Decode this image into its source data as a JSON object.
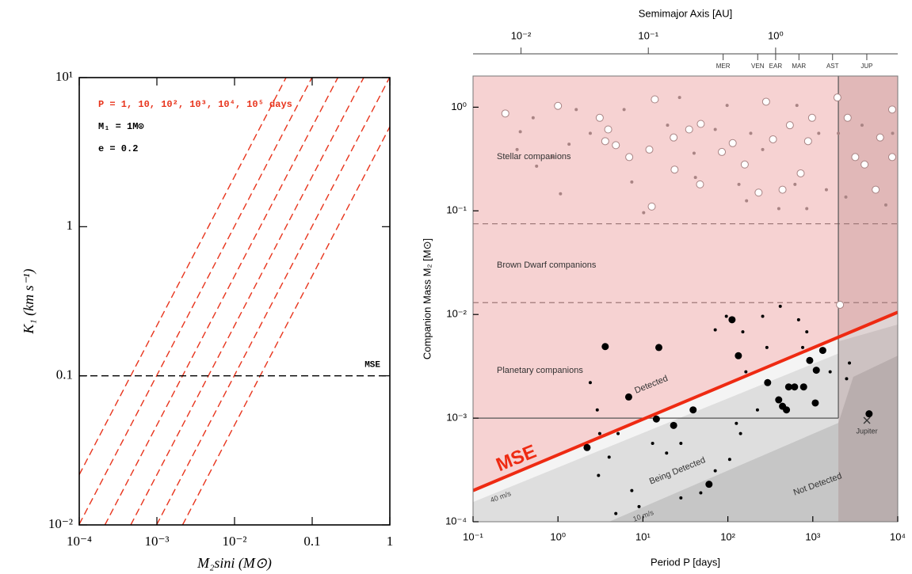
{
  "chart_data": [
    {
      "type": "line",
      "xlabel": "M₂sini (M⊙)",
      "ylabel": "K₁ (km s⁻¹)",
      "xscale": "log",
      "yscale": "log",
      "xlim": [
        0.0001,
        1
      ],
      "ylim": [
        0.01,
        10
      ],
      "xticks": [
        {
          "value": 0.0001,
          "label": "10⁻⁴"
        },
        {
          "value": 0.001,
          "label": "10⁻³"
        },
        {
          "value": 0.01,
          "label": "10⁻²"
        },
        0.1,
        1
      ],
      "yticks": [
        {
          "value": 0.01,
          "label": "10⁻²"
        },
        0.1,
        1,
        {
          "value": 10,
          "label": "10¹"
        }
      ],
      "annotations": [
        "P = 1, 10, 10², 10³, 10⁴, 10⁵ days",
        "M₁ = 1M⊙",
        "e = 0.2"
      ],
      "annotation_colors": [
        "#e8341c",
        "#000000",
        "#000000"
      ],
      "series": [
        {
          "color": "#e8341c",
          "dash": "dashed",
          "x": [
            0.0001,
            0.0461
          ],
          "values": [
            0.0217,
            10
          ]
        },
        {
          "color": "#e8341c",
          "dash": "dashed",
          "x": [
            0.0001,
            0.0992
          ],
          "values": [
            0.0101,
            10
          ]
        },
        {
          "color": "#e8341c",
          "dash": "dashed",
          "x": [
            0.000214,
            0.214
          ],
          "values": [
            0.01,
            10
          ]
        },
        {
          "color": "#e8341c",
          "dash": "dashed",
          "x": [
            0.00046,
            0.46
          ],
          "values": [
            0.01,
            10
          ]
        },
        {
          "color": "#e8341c",
          "dash": "dashed",
          "x": [
            0.00099,
            0.99
          ],
          "values": [
            0.01,
            10
          ]
        },
        {
          "color": "#e8341c",
          "dash": "dashed",
          "x": [
            0.00214,
            1
          ],
          "values": [
            0.01,
            4.68
          ]
        }
      ],
      "hlines": [
        {
          "value": 0.1,
          "label": "MSE",
          "color": "#000000"
        }
      ]
    },
    {
      "type": "scatter",
      "xlabel": "Period P [days]",
      "ylabel": "Companion Mass M₂ [M⊙]",
      "x2label": "Semimajor Axis [AU]",
      "xscale": "log",
      "yscale": "log",
      "xlim": [
        0.1,
        10000
      ],
      "ylim": [
        0.0001,
        2
      ],
      "x2lim": [
        0.0042,
        9.1
      ],
      "xticks": [
        {
          "value": 0.1,
          "label": "10⁻¹"
        },
        {
          "value": 1,
          "label": "10⁰"
        },
        {
          "value": 10,
          "label": "10¹"
        },
        {
          "value": 100,
          "label": "10²"
        },
        {
          "value": 1000,
          "label": "10³"
        },
        {
          "value": 10000,
          "label": "10⁴"
        }
      ],
      "yticks": [
        {
          "value": 0.0001,
          "label": "10⁻⁴"
        },
        {
          "value": 0.001,
          "label": "10⁻³"
        },
        {
          "value": 0.01,
          "label": "10⁻²"
        },
        {
          "value": 0.1,
          "label": "10⁻¹"
        },
        {
          "value": 1,
          "label": "10⁰"
        }
      ],
      "x2ticks": [
        {
          "value": 0.01,
          "label": "10⁻²"
        },
        {
          "value": 0.1,
          "label": "10⁻¹"
        },
        {
          "value": 1,
          "label": "10⁰"
        }
      ],
      "x2_planets": [
        {
          "value": 0.387,
          "label": "MER"
        },
        {
          "value": 0.723,
          "label": "VEN"
        },
        {
          "value": 1,
          "label": "EAR"
        },
        {
          "value": 1.524,
          "label": "MAR"
        },
        {
          "value": 2.8,
          "label": "AST"
        },
        {
          "value": 5.2,
          "label": "JUP"
        }
      ],
      "region_labels": [
        "Stellar companions",
        "Brown Dwarf companions",
        "Planetary companions"
      ],
      "mass_limits": [
        0.075,
        0.013
      ],
      "box": {
        "x": 2000,
        "value": 0.001
      },
      "mse_line": {
        "label": "MSE",
        "sublabel": "Detected",
        "color": "#ee2a12",
        "x": [
          0.1,
          10000
        ],
        "values": [
          0.0002,
          0.0105
        ]
      },
      "limits": [
        {
          "label": "40 m/s",
          "color": "#dedede",
          "x": [
            0.1,
            2000,
            2000,
            10000
          ],
          "values": [
            0.000155,
            0.0042,
            0.0055,
            0.008
          ]
        },
        {
          "label": "10 m/s",
          "color": "#c6c6c6",
          "x": [
            4,
            2000,
            3000,
            10000
          ],
          "values": [
            0.0001,
            0.0009,
            0.0025,
            0.004
          ]
        }
      ],
      "zone_labels": [
        "Being Detected",
        "Not Detected"
      ],
      "jupiter": {
        "label": "Jupiter",
        "x": 4333,
        "value": 0.00095
      },
      "series": [
        {
          "marker": "open",
          "size": "large",
          "color": "#a98484",
          "x": [
            0.24,
            1.0,
            3.9,
            4.8,
            13.8,
            11.9,
            6.9,
            23,
            35,
            48,
            85,
            114,
            158,
            282,
            537,
            980,
            1950,
            2570,
            3160,
            4070,
            5500,
            6200,
            8600,
            8600,
            880,
            2090,
            47,
            230,
            440,
            720,
            12.7,
            3.6,
            23.6,
            3.1,
            340
          ],
          "values": [
            0.87,
            1.03,
            0.61,
            0.43,
            1.19,
            0.39,
            0.33,
            0.51,
            0.61,
            0.69,
            0.37,
            0.45,
            0.28,
            1.13,
            0.67,
            0.79,
            1.24,
            0.79,
            0.33,
            0.28,
            0.16,
            0.51,
            0.95,
            0.33,
            0.47,
            0.0124,
            0.18,
            0.15,
            0.16,
            0.23,
            0.11,
            0.47,
            0.25,
            0.79,
            0.49
          ]
        },
        {
          "marker": "dot",
          "size": "small",
          "color": "#a98484",
          "x": [
            0.36,
            0.33,
            0.51,
            0.86,
            1.07,
            1.64,
            2.4,
            6.0,
            7.4,
            10.2,
            19.5,
            27,
            41.5,
            71,
            98,
            166,
            186,
            257,
            398,
            617,
            850,
            1175,
            1445,
            2450,
            3800,
            7240,
            650,
            135,
            40,
            1.35,
            2000,
            8700,
            0.56
          ],
          "values": [
            0.58,
            0.39,
            0.79,
            0.33,
            0.146,
            0.95,
            0.56,
            0.95,
            0.19,
            0.096,
            0.67,
            1.24,
            0.21,
            0.61,
            1.04,
            0.125,
            0.56,
            0.39,
            0.105,
            0.18,
            0.105,
            0.56,
            0.16,
            0.136,
            0.67,
            0.114,
            1.04,
            0.18,
            0.36,
            0.44,
            0.56,
            0.56,
            0.27
          ]
        },
        {
          "marker": "filled",
          "size": "large",
          "color": "#000000",
          "x": [
            3.6,
            15.4,
            112,
            133,
            6.8,
            2.2,
            14.4,
            39,
            23,
            60,
            294,
            397,
            440,
            520,
            610,
            780,
            490,
            920,
            1100,
            1310,
            1070,
            4600
          ],
          "values": [
            0.0049,
            0.0048,
            0.0089,
            0.004,
            0.0016,
            0.00052,
            0.00098,
            0.0012,
            0.00085,
            0.00023,
            0.0022,
            0.0015,
            0.0013,
            0.002,
            0.002,
            0.002,
            0.0012,
            0.0036,
            0.0029,
            0.0045,
            0.0014,
            0.0011
          ]
        },
        {
          "marker": "filled",
          "size": "small",
          "color": "#000000",
          "x": [
            2.4,
            2.9,
            3.1,
            5.1,
            13,
            19,
            28,
            96,
            71,
            257,
            150,
            288,
            163,
            223,
            126,
            141,
            105,
            71,
            48,
            28,
            7.4,
            3.0,
            4.0,
            414,
            680,
            850,
            760,
            1600,
            2500,
            2700,
            9.0,
            4.8
          ],
          "values": [
            0.0022,
            0.0012,
            0.00071,
            0.00071,
            0.00057,
            0.00046,
            0.00057,
            0.0096,
            0.0071,
            0.0096,
            0.0068,
            0.0048,
            0.0028,
            0.0012,
            0.00089,
            0.00071,
            0.0004,
            0.00031,
            0.00019,
            0.00017,
            0.0002,
            0.00028,
            0.00042,
            0.012,
            0.0089,
            0.0068,
            0.0048,
            0.0028,
            0.0024,
            0.0034,
            0.00014,
            0.00012
          ]
        }
      ]
    }
  ]
}
